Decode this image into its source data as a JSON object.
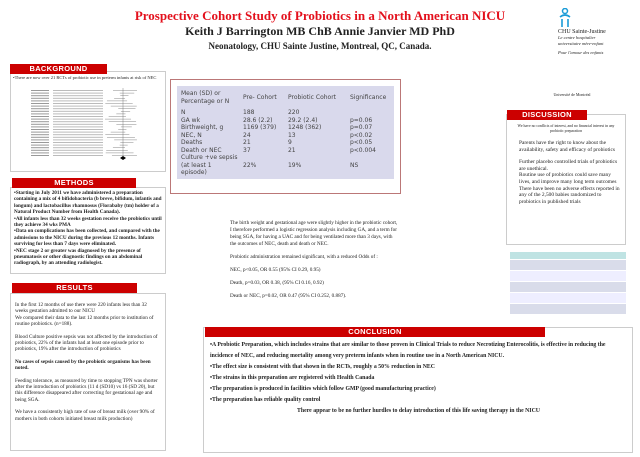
{
  "header": {
    "title": "Prospective Cohort Study of Probiotics in a North American NICU",
    "authors": "Keith J Barrington MB ChB Annie Janvier MD PhD",
    "affiliation": "Neonatology, CHU Sainte Justine, Montreal, QC, Canada."
  },
  "logo": {
    "name": "CHU Sainte-Justine",
    "tagline1": "Le centre hospitalier",
    "tagline2": "universitaire mère-enfant",
    "motto": "Pour l'amour des enfants",
    "university": "Université de Montréal"
  },
  "background": {
    "heading": "BACKGROUND",
    "text": "•There are now over 21 RCTs of probiotic use in preterm infants at risk of NEC"
  },
  "methods": {
    "heading": "METHODS",
    "items": [
      "•Starting in July 2011 we have administered a preparation containing a mix of 4 bifidobacteria (b breve, bifidum, infantis and longum) and lactobacillus rhamnosus (Florababy (tm) holder of a Natural Product Number from Health Canada).",
      "•All infants less than 32 weeks gestation receive the probiotics until they achieve 34 wks PMA",
      "•Data on complications has been collected, and compared with the admissions to the NICU during the previous 12 months. Infants surviving for less than 7 days were eliminated.",
      "•NEC stage 2 or greater was diagnosed by the presence of pneumatosis or other diagnostic findings on an abdominal radiograph, by an attending radiologist."
    ]
  },
  "results": {
    "heading": "RESULTS",
    "p1": "In the first 12 months of use there were 220 infants less than 32 weeks gestation admitted to our NICU",
    "p1b": "We compared their data to the last 12 months prior to institution of routine probiotics. (n=188).",
    "p2": "Blood Culture positive sepsis was not affected by the introduction of probiotics, 22% of the infants had at least one episode prior to probiotics, 19% after the introduction of probiotics",
    "p3": "No cases of sepsis caused by the probiotic organisms has been noted.",
    "p4": "Feeding tolerance, as measured by time to stopping TPN was shorter after the introduction of probiotics (11 d (SD10) vs 16 (SD 20), but this difference disappeared after correcting for gestational age and being SGA.",
    "p5": "We have a consistently high rate of use of breast milk (over 90% of mothers in both cohorts initiated breast milk production)"
  },
  "table": {
    "headers": [
      "Mean (SD) or Percentage or N",
      "Pre- Cohort",
      "Probiotic Cohort",
      "Significance"
    ],
    "rows": [
      [
        "N",
        "188",
        "220",
        ""
      ],
      [
        "GA wk",
        "28.6 (2.2)",
        "29.2 (2.4)",
        "p=0.06"
      ],
      [
        "Birthweight, g",
        "1169 (379)",
        "1248 (362)",
        "p=0.07"
      ],
      [
        "NEC, N",
        "24",
        "13",
        "p<0.02"
      ],
      [
        "Deaths",
        "21",
        "9",
        "p<0.05"
      ],
      [
        "Death or NEC",
        "37",
        "21",
        "p<0.004"
      ],
      [
        "Culture +ve sepsis (at least 1 episode)",
        "22%",
        "19%",
        "NS"
      ]
    ]
  },
  "analysis": {
    "p1": "The birth weight and gestational age were slightly  higher in the probiotic cohort, I therefore performed a logistic regression analysis including GA, and a term for being SGA, for having a UAC and for being ventilated more than 3 days, with the outcomes of NEC, death and death or NEC.",
    "p2": "Probiotic administration remained significant, with a reduced Odds of :",
    "p3": "NEC, p<0.05, OR 0.55 (95% CI 0.29, 0.95)",
    "p4": "Death, p=0.03, OR 0.38, (95% CI 0.16, 0.92)",
    "p5": "Death or NEC,  p=0.02, OR 0.47 (95% CI 0.252, 0.887)."
  },
  "discussion": {
    "heading": "DISCUSSION",
    "note": "We have no conflicts of interest, and no financial interest in any probiotic preparation",
    "p1": "Parents have the right to know about the availability, safety and efficacy of probiotics",
    "p2": "Further placebo controlled trials of probiotics are unethical.",
    "p3": "Routine use of probiotics could save many lives, and improve many long term outcomes",
    "p4": "There have been no adverse effects reported in any of  the 2,500 babies randomized to probiotics in published trials"
  },
  "conclusion": {
    "heading": "CONCLUSION",
    "items": [
      "•A Probiotic Preparation, which includes strains that are similar to those proven in Clinical Trials to reduce Necrotizing Enterocolitis, is effective in reducing the incidence of NEC, and reducing mortality among very preterm infants when in routine use in a North American NICU.",
      "•The effect size is consistent with that shown in the  RCTs, roughly a 50% reduction in NEC",
      "•The strains in this preparation are registered with Health Canada",
      "•The preparation is produced in facilities which follow GMP (good manufacturing practice)",
      "•The preparation has reliable quality control"
    ],
    "closing": "There appear to be no further hurdles to delay introduction of this life saving therapy in the NICU"
  },
  "colors": {
    "accent": "#cc0000",
    "title": "#e3101c",
    "table_bg": "#d9d9ec",
    "table_header": "#bfe3e3"
  }
}
